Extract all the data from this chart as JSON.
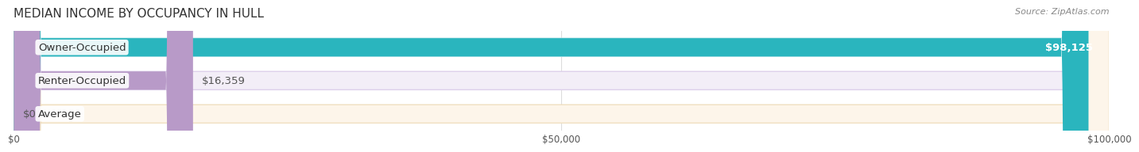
{
  "title": "MEDIAN INCOME BY OCCUPANCY IN HULL",
  "source": "Source: ZipAtlas.com",
  "categories": [
    "Owner-Occupied",
    "Renter-Occupied",
    "Average"
  ],
  "values": [
    98125,
    16359,
    0
  ],
  "labels": [
    "$98,125",
    "$16,359",
    "$0"
  ],
  "bar_colors": [
    "#2ab5be",
    "#b89ac8",
    "#f5c996"
  ],
  "bar_bg_colors": [
    "#e8f7f8",
    "#f3eef7",
    "#fdf5ea"
  ],
  "bar_border_colors": [
    "#c0e8ec",
    "#ddd0ea",
    "#f0dfc0"
  ],
  "xlim": [
    0,
    100000
  ],
  "xticks": [
    0,
    50000,
    100000
  ],
  "xticklabels": [
    "$0",
    "$50,000",
    "$100,000"
  ],
  "bg_color": "#ffffff",
  "title_fontsize": 11,
  "bar_height": 0.55,
  "label_fontsize": 9.5,
  "category_fontsize": 9.5,
  "grid_color": "#dddddd"
}
